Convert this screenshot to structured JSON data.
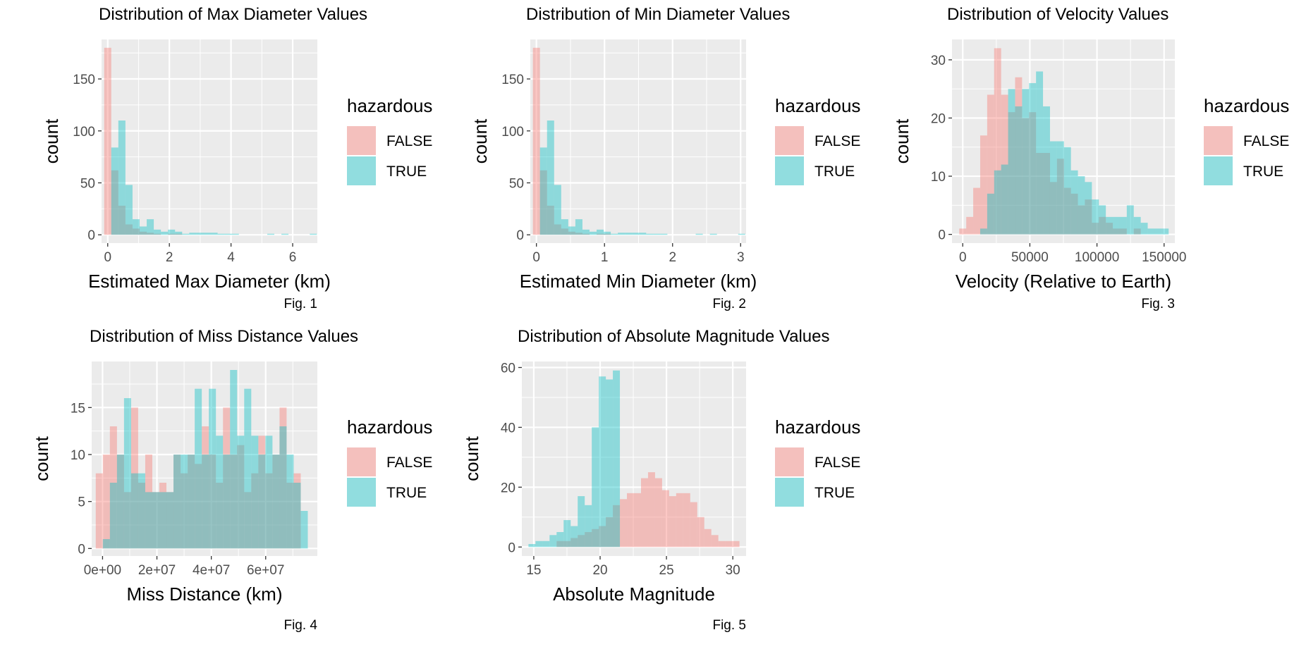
{
  "colors": {
    "false_fill": "#F8766D",
    "true_fill": "#00BFC4",
    "panel_bg": "#EBEBEB",
    "grid": "#FFFFFF"
  },
  "chart_data": [
    {
      "type": "histogram",
      "title": "Distribution of Max Diameter Values",
      "xlabel": "Estimated Max Diameter (km)",
      "ylabel": "count",
      "caption": "Fig. 1",
      "legend_title": "hazardous",
      "legend_position": "right",
      "grid": true,
      "xlim": [
        -0.2,
        6.8
      ],
      "ylim": [
        -8,
        188
      ],
      "x_ticks": [
        0,
        2,
        4,
        6
      ],
      "x_tick_labels": [
        "0",
        "2",
        "4",
        "6"
      ],
      "y_ticks": [
        0,
        50,
        100,
        150
      ],
      "y_tick_labels": [
        "0",
        "50",
        "100",
        "150"
      ],
      "bin_start": -0.115,
      "bin_width": 0.23,
      "series": [
        {
          "name": "FALSE",
          "values": [
            180,
            62,
            28,
            10,
            6,
            3,
            2,
            1,
            0,
            1,
            1,
            0,
            0,
            0,
            0,
            0,
            0,
            0,
            0,
            0,
            0,
            0,
            0,
            0,
            0,
            0,
            0,
            0,
            0,
            0
          ]
        },
        {
          "name": "TRUE",
          "values": [
            0,
            84,
            110,
            48,
            15,
            8,
            15,
            5,
            3,
            5,
            3,
            1,
            2,
            2,
            2,
            2,
            1,
            1,
            1,
            0,
            0,
            0,
            0,
            1,
            0,
            1,
            0,
            0,
            0,
            1
          ]
        }
      ]
    },
    {
      "type": "histogram",
      "title": "Distribution of Min Diameter Values",
      "xlabel": "Estimated Min Diameter (km)",
      "ylabel": "count",
      "caption": "Fig. 2",
      "legend_title": "hazardous",
      "legend_position": "right",
      "grid": true,
      "xlim": [
        -0.09,
        3.08
      ],
      "ylim": [
        -8,
        188
      ],
      "x_ticks": [
        0,
        1,
        2,
        3
      ],
      "x_tick_labels": [
        "0",
        "1",
        "2",
        "3"
      ],
      "y_ticks": [
        0,
        50,
        100,
        150
      ],
      "y_tick_labels": [
        "0",
        "50",
        "100",
        "150"
      ],
      "bin_start": -0.052,
      "bin_width": 0.104,
      "series": [
        {
          "name": "FALSE",
          "values": [
            180,
            62,
            28,
            10,
            6,
            3,
            2,
            1,
            0,
            1,
            1,
            0,
            0,
            0,
            0,
            0,
            0,
            0,
            0,
            0,
            0,
            0,
            0,
            0,
            0,
            0,
            0,
            0,
            0,
            0
          ]
        },
        {
          "name": "TRUE",
          "values": [
            0,
            84,
            110,
            48,
            15,
            8,
            15,
            5,
            3,
            5,
            3,
            1,
            2,
            2,
            2,
            2,
            1,
            1,
            1,
            0,
            0,
            0,
            0,
            1,
            0,
            1,
            0,
            0,
            0,
            1
          ]
        }
      ]
    },
    {
      "type": "histogram",
      "title": "Distribution of Velocity Values",
      "xlabel": "Velocity (Relative to Earth)",
      "ylabel": "count",
      "caption": "Fig. 3",
      "legend_title": "hazardous",
      "legend_position": "right",
      "grid": true,
      "xlim": [
        -8000,
        158000
      ],
      "ylim": [
        -1.5,
        33.5
      ],
      "x_ticks": [
        0,
        50000,
        100000,
        150000
      ],
      "x_tick_labels": [
        "0",
        "50000",
        "100000",
        "150000"
      ],
      "y_ticks": [
        0,
        10,
        20,
        30
      ],
      "y_tick_labels": [
        "0",
        "10",
        "20",
        "30"
      ],
      "bin_start": -2600,
      "bin_width": 5200,
      "series": [
        {
          "name": "FALSE",
          "values": [
            1,
            3,
            8,
            17,
            24,
            32,
            24,
            21,
            27,
            20,
            21,
            14,
            14,
            9,
            13,
            8,
            7,
            5,
            6,
            2,
            3,
            2,
            1,
            1,
            0,
            1,
            0,
            0,
            0,
            0
          ]
        },
        {
          "name": "TRUE",
          "values": [
            0,
            0,
            0,
            1,
            7,
            11,
            12,
            25,
            22,
            25,
            26,
            28,
            22,
            16,
            16,
            15,
            11,
            10,
            9,
            6,
            5,
            3,
            3,
            3,
            5,
            3,
            2,
            1,
            1,
            1
          ]
        }
      ]
    },
    {
      "type": "histogram",
      "title": "Distribution of Miss Distance Values",
      "xlabel": "Miss Distance (km)",
      "ylabel": "count",
      "caption": "Fig. 4",
      "legend_title": "hazardous",
      "legend_position": "right",
      "grid": true,
      "xlim": [
        -4000000,
        79000000
      ],
      "ylim": [
        -0.8,
        19.9
      ],
      "x_ticks": [
        0,
        20000000,
        40000000,
        60000000
      ],
      "x_tick_labels": [
        "0e+00",
        "2e+07",
        "4e+07",
        "6e+07"
      ],
      "y_ticks": [
        0,
        5,
        10,
        15
      ],
      "y_tick_labels": [
        "0",
        "5",
        "10",
        "15"
      ],
      "bin_start": -2500000,
      "bin_width": 2600000,
      "series": [
        {
          "name": "FALSE",
          "values": [
            8,
            10,
            13,
            10,
            6,
            15,
            7,
            10,
            6,
            7,
            6,
            10,
            8,
            10,
            9,
            13,
            10,
            7,
            15,
            10,
            11,
            6,
            8,
            12,
            8,
            10,
            15,
            7,
            8,
            0
          ]
        },
        {
          "name": "TRUE",
          "values": [
            0,
            1,
            7,
            10,
            16,
            8,
            8,
            6,
            6,
            6,
            6,
            10,
            10,
            10,
            17,
            10,
            17,
            12,
            10,
            19,
            12,
            17,
            12,
            10,
            12,
            10,
            13,
            10,
            7,
            4
          ]
        }
      ]
    },
    {
      "type": "histogram",
      "title": "Distribution of Absolute Magnitude Values",
      "xlabel": "Absolute Magnitude",
      "ylabel": "count",
      "caption": "Fig. 5",
      "legend_title": "hazardous",
      "legend_position": "right",
      "grid": true,
      "xlim": [
        14.1,
        31.0
      ],
      "ylim": [
        -3,
        62
      ],
      "x_ticks": [
        15,
        20,
        25,
        30
      ],
      "x_tick_labels": [
        "15",
        "20",
        "25",
        "30"
      ],
      "y_ticks": [
        0,
        20,
        40,
        60
      ],
      "y_tick_labels": [
        "0",
        "20",
        "40",
        "60"
      ],
      "bin_start": 14.6,
      "bin_width": 0.53,
      "series": [
        {
          "name": "FALSE",
          "values": [
            0,
            0,
            0,
            0,
            2,
            2,
            3,
            4,
            5,
            6,
            7,
            10,
            14,
            16,
            18,
            18,
            23,
            25,
            23,
            19,
            17,
            18,
            18,
            15,
            10,
            6,
            4,
            2,
            2,
            2
          ]
        },
        {
          "name": "TRUE",
          "values": [
            1,
            2,
            2,
            4,
            5,
            9,
            7,
            17,
            14,
            40,
            57,
            56,
            59,
            0,
            0,
            0,
            0,
            0,
            0,
            0,
            0,
            0,
            0,
            0,
            0,
            0,
            0,
            0,
            0,
            0
          ]
        }
      ]
    }
  ]
}
